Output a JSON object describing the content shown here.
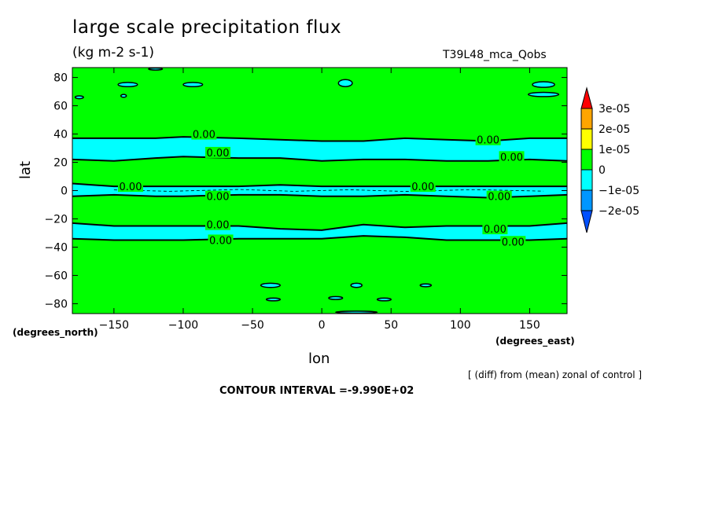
{
  "header": {
    "title": "large scale precipitation flux",
    "units": "(kg m-2 s-1)",
    "run_label": "T39L48_mca_Qobs"
  },
  "axes": {
    "xlabel": "lon",
    "ylabel": "lat",
    "x_units": "(degrees_east)",
    "y_units": "(degrees_north)"
  },
  "footer": {
    "note": "[ (diff) from (mean) zonal of control ]",
    "contour_interval": "CONTOUR INTERVAL =-9.990E+02"
  },
  "chart_data": {
    "type": "heatmap",
    "title": "large scale precipitation flux",
    "subtitle": "(kg m-2 s-1)",
    "xlabel": "lon",
    "ylabel": "lat",
    "xlim": [
      -180,
      177
    ],
    "ylim": [
      -87,
      87
    ],
    "x_ticks": [
      -150,
      -100,
      -50,
      0,
      50,
      100,
      150
    ],
    "y_ticks": [
      80,
      60,
      40,
      20,
      0,
      -20,
      -40,
      -60,
      -80
    ],
    "colorbar": {
      "labels": [
        "3e-05",
        "2e-05",
        "1e-05",
        "0",
        "-1e-05",
        "-2e-05"
      ],
      "colors": [
        "#ff0000",
        "#ffa500",
        "#ffff00",
        "#00ff00",
        "#00ffff",
        "#0096ff",
        "#0050ff"
      ]
    },
    "background_color": "#00ff00",
    "band_color": "#00ffff",
    "bands": [
      {
        "x": [
          -180,
          -150,
          -120,
          -100,
          -60,
          -30,
          0,
          30,
          60,
          90,
          120,
          150,
          177
        ],
        "lat_north": [
          37,
          37,
          37,
          38,
          37,
          36,
          35,
          35,
          37,
          36,
          35,
          37,
          37
        ],
        "lat_south": [
          22,
          21,
          23,
          24,
          23,
          23,
          21,
          22,
          22,
          21,
          21,
          22,
          21
        ]
      },
      {
        "x": [
          -180,
          -150,
          -120,
          -100,
          -60,
          -30,
          0,
          30,
          60,
          90,
          120,
          150,
          177
        ],
        "lat_north": [
          5,
          3,
          3,
          3,
          3,
          4,
          3,
          3,
          3,
          3,
          3,
          3,
          3
        ],
        "lat_south": [
          -4,
          -3,
          -4,
          -4,
          -3,
          -3,
          -4,
          -4,
          -3,
          -4,
          -5,
          -4,
          -3
        ]
      },
      {
        "x": [
          -180,
          -150,
          -120,
          -100,
          -60,
          -30,
          0,
          30,
          60,
          90,
          120,
          150,
          177
        ],
        "lat_north": [
          -23,
          -25,
          -25,
          -25,
          -25,
          -27,
          -28,
          -24,
          -26,
          -25,
          -25,
          -25,
          -23
        ],
        "lat_south": [
          -34,
          -35,
          -35,
          -35,
          -34,
          -34,
          -34,
          -32,
          -33,
          -35,
          -35,
          -35,
          -34
        ]
      }
    ],
    "contour_labels": [
      {
        "text": "0.00",
        "lon": -85,
        "lat": 40
      },
      {
        "text": "0.00",
        "lon": -75,
        "lat": 27
      },
      {
        "text": "0.00",
        "lon": 120,
        "lat": 36
      },
      {
        "text": "0.00",
        "lon": 137,
        "lat": 24
      },
      {
        "text": "0.00",
        "lon": -138,
        "lat": 3
      },
      {
        "text": "0.00",
        "lon": -75,
        "lat": -4
      },
      {
        "text": "0.00",
        "lon": 73,
        "lat": 3
      },
      {
        "text": "0.00",
        "lon": 128,
        "lat": -4
      },
      {
        "text": "0.00",
        "lon": -75,
        "lat": -24
      },
      {
        "text": "0.00",
        "lon": -73,
        "lat": -35
      },
      {
        "text": "0.00",
        "lon": 125,
        "lat": -27
      },
      {
        "text": "0.00",
        "lon": 138,
        "lat": -36
      }
    ]
  }
}
